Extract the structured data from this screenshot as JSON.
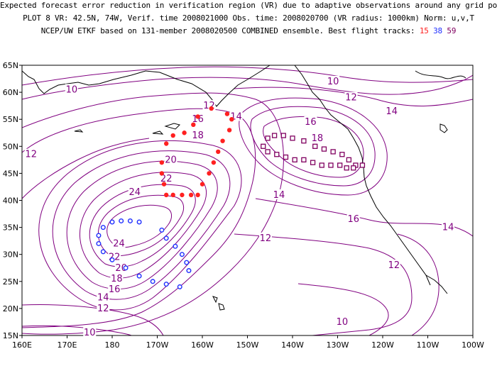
{
  "title": {
    "line1": "Expected forecast error reduction in verification region (VR) due to adaptive observations around any grid point.",
    "line2": "PLOT 8 VR: 42.5N, 74W, Verif. time 2008021000 Obs. time: 2008020700 (VR radius: 1000km) Norm: u,v,T",
    "line3_prefix": "NCEP/UW ETKF based on 131-member 2008020500 COMBINED ensemble.  Best flight tracks:",
    "tracks": [
      "15",
      "38",
      "59"
    ]
  },
  "axes": {
    "lat_labels": [
      "65N",
      "60N",
      "55N",
      "50N",
      "45N",
      "40N",
      "35N",
      "30N",
      "25N",
      "20N",
      "15N"
    ],
    "lon_labels": [
      "160E",
      "170E",
      "180",
      "170W",
      "160W",
      "150W",
      "140W",
      "130W",
      "120W",
      "110W",
      "100W"
    ]
  },
  "colors": {
    "contour": "#800080",
    "track_15": "#ff2020",
    "track_38": "#2030ff",
    "track_59": "#800060"
  },
  "contour_labels": [
    {
      "text": "10",
      "lon": 171,
      "lat": 60.5
    },
    {
      "text": "10",
      "lon": -131,
      "lat": 62
    },
    {
      "text": "12",
      "lon": -158.5,
      "lat": 57.5
    },
    {
      "text": "12",
      "lon": -127,
      "lat": 59
    },
    {
      "text": "14",
      "lon": -152.5,
      "lat": 55.5
    },
    {
      "text": "14",
      "lon": -118,
      "lat": 56.5
    },
    {
      "text": "16",
      "lon": -161,
      "lat": 55
    },
    {
      "text": "16",
      "lon": -136,
      "lat": 54.5
    },
    {
      "text": "18",
      "lon": -161,
      "lat": 52
    },
    {
      "text": "18",
      "lon": -134.5,
      "lat": 51.5
    },
    {
      "text": "12",
      "lon": 162,
      "lat": 48.5
    },
    {
      "text": "20",
      "lon": -167,
      "lat": 47.5
    },
    {
      "text": "22",
      "lon": -168,
      "lat": 44
    },
    {
      "text": "24",
      "lon": -175,
      "lat": 41.5
    },
    {
      "text": "14",
      "lon": -143,
      "lat": 41
    },
    {
      "text": "16",
      "lon": -126.5,
      "lat": 36.5
    },
    {
      "text": "14",
      "lon": -105.5,
      "lat": 35
    },
    {
      "text": "12",
      "lon": -146,
      "lat": 33
    },
    {
      "text": "24",
      "lon": -178.5,
      "lat": 32
    },
    {
      "text": "22",
      "lon": -179.5,
      "lat": 29.5
    },
    {
      "text": "20",
      "lon": -178,
      "lat": 27.5
    },
    {
      "text": "18",
      "lon": -179,
      "lat": 25.5
    },
    {
      "text": "16",
      "lon": -179.5,
      "lat": 23.5
    },
    {
      "text": "14",
      "lon": 178,
      "lat": 22
    },
    {
      "text": "12",
      "lon": 178,
      "lat": 20
    },
    {
      "text": "12",
      "lon": -117.5,
      "lat": 28
    },
    {
      "text": "10",
      "lon": -129,
      "lat": 17.5
    },
    {
      "text": "10",
      "lon": 175,
      "lat": 15.5
    }
  ],
  "flight_tracks": [
    {
      "id": "15",
      "marker": "dot",
      "points": [
        [
          -161,
          55.5
        ],
        [
          -158,
          57
        ],
        [
          -154.5,
          56
        ],
        [
          -153.5,
          55
        ],
        [
          -154,
          53
        ],
        [
          -155.5,
          51
        ],
        [
          -156.5,
          49
        ],
        [
          -157.5,
          47
        ],
        [
          -158.5,
          45
        ],
        [
          -160,
          43
        ],
        [
          -161,
          41
        ],
        [
          -162.5,
          41
        ],
        [
          -164.5,
          41
        ],
        [
          -166.5,
          41
        ],
        [
          -168,
          41
        ],
        [
          -168.5,
          43
        ],
        [
          -169,
          45
        ],
        [
          -169,
          47
        ],
        [
          -168,
          50.5
        ],
        [
          -166.5,
          52
        ],
        [
          -164,
          52.5
        ],
        [
          -162,
          54
        ]
      ]
    },
    {
      "id": "38",
      "marker": "circle",
      "points": [
        [
          -169,
          34.5
        ],
        [
          -168,
          33
        ],
        [
          -166,
          31.5
        ],
        [
          -164.5,
          30
        ],
        [
          -163.5,
          28.5
        ],
        [
          -163,
          27
        ],
        [
          -165,
          24
        ],
        [
          -168,
          24.5
        ],
        [
          -171,
          25
        ],
        [
          -174,
          26
        ],
        [
          -177,
          27.5
        ],
        [
          -180,
          29
        ],
        [
          178,
          30.5
        ],
        [
          177,
          32
        ],
        [
          177,
          33.5
        ],
        [
          178,
          35
        ],
        [
          -180,
          36
        ],
        [
          -178,
          36.2
        ],
        [
          -176,
          36.2
        ],
        [
          -174,
          36
        ]
      ]
    },
    {
      "id": "59",
      "marker": "square",
      "points": [
        [
          -146.5,
          50
        ],
        [
          -145.5,
          51.5
        ],
        [
          -144,
          52
        ],
        [
          -142,
          52
        ],
        [
          -140,
          51.5
        ],
        [
          -137.5,
          51
        ],
        [
          -135,
          50
        ],
        [
          -133,
          49.5
        ],
        [
          -131,
          49
        ],
        [
          -129,
          48.5
        ],
        [
          -127.5,
          47.5
        ],
        [
          -126,
          46.5
        ],
        [
          -124.5,
          46.5
        ],
        [
          -126.5,
          46
        ],
        [
          -128,
          46
        ],
        [
          -129.5,
          46.5
        ],
        [
          -131.5,
          46.5
        ],
        [
          -133.5,
          46.5
        ],
        [
          -135.5,
          47
        ],
        [
          -137.5,
          47.5
        ],
        [
          -139.5,
          47.5
        ],
        [
          -141.5,
          48
        ],
        [
          -143.5,
          48.5
        ],
        [
          -145.5,
          49
        ]
      ]
    }
  ]
}
